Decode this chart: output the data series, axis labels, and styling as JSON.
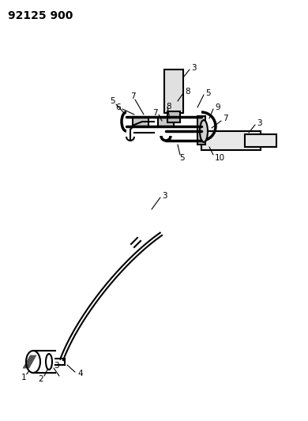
{
  "title": "92125 900",
  "bg_color": "#ffffff",
  "line_color": "#000000",
  "title_fontsize": 10,
  "label_fontsize": 7.5,
  "fig_width": 3.9,
  "fig_height": 5.33,
  "dpi": 100
}
